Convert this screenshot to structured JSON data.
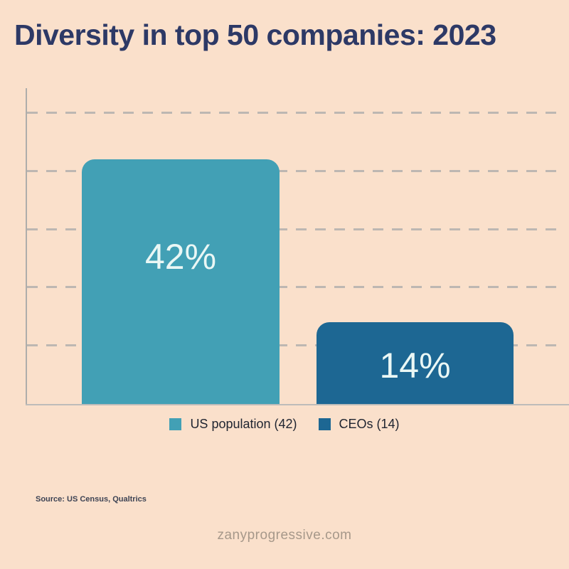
{
  "page": {
    "background": "#FAE0CB"
  },
  "title": {
    "text": "Diversity in top 50 companies: 2023",
    "color": "#2D3966"
  },
  "chart_data": {
    "type": "bar",
    "title": "Diversity in top 50 companies: 2023",
    "categories": [
      "US population",
      "CEOs"
    ],
    "values": [
      42,
      14
    ],
    "bar_labels": [
      "42%",
      "14%"
    ],
    "bar_colors": [
      "#42A0B5",
      "#1D6793"
    ],
    "xlabel": "",
    "ylabel": "",
    "ylim": [
      0,
      55
    ],
    "gridlines": [
      10,
      20,
      30,
      40,
      50
    ],
    "grid_style": "dashed",
    "grid_color": "#A9A9A9",
    "legend_position": "bottom",
    "legend": [
      {
        "label": "US population (42)",
        "color": "#42A0B5"
      },
      {
        "label": "CEOs (14)",
        "color": "#1D6793"
      }
    ]
  },
  "source": {
    "text": "Source: US Census, Qualtrics"
  },
  "footer": {
    "text": "zanyprogressive.com"
  }
}
